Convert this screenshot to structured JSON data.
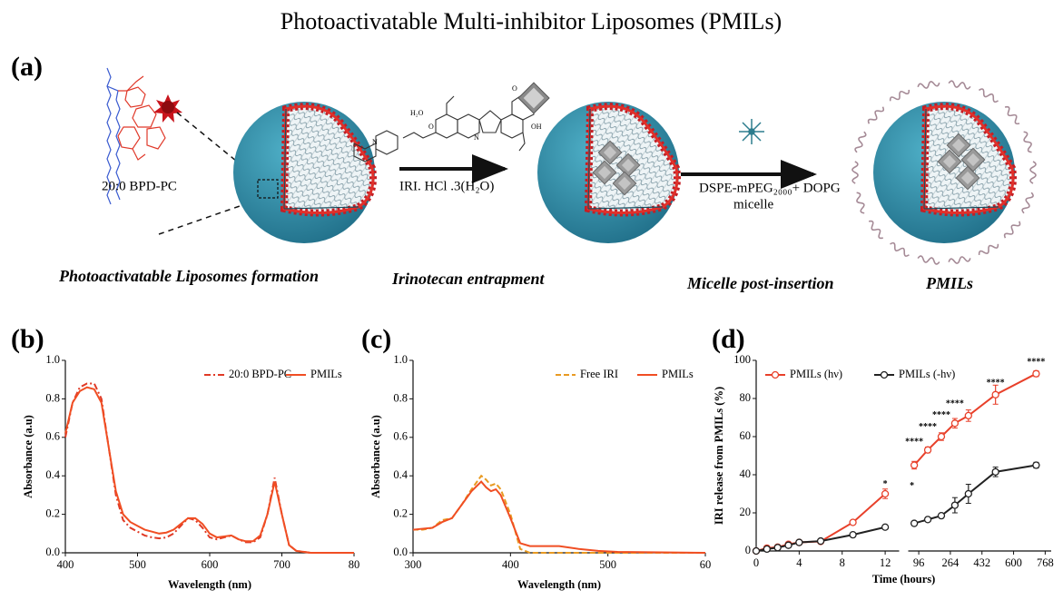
{
  "title": "Photoactivatable Multi-inhibitor Liposomes (PMILs)",
  "diagram": {
    "panel_label": "(a)",
    "lipid_label": "20:0 BPD-PC",
    "molecule_labels": [
      "H₂O",
      "O",
      "O",
      "OH",
      "N",
      "N"
    ],
    "step1_label": "IRI. HCl .3(H₂O)",
    "step2_label": [
      "DSPE-mPEG₂₀₀₀+ DOPG",
      "micelle"
    ],
    "stages": [
      "Photoactivatable Liposomes formation",
      "Irinotecan entrapment",
      "Micelle post-insertion",
      "PMILs"
    ]
  },
  "chart_data": [
    {
      "type": "line",
      "panel_label": "(b)",
      "x_label": "Wavelength (nm)",
      "y_label": "Absorbance (a.u)",
      "x": [
        400,
        410,
        420,
        430,
        440,
        450,
        460,
        470,
        480,
        490,
        500,
        510,
        520,
        530,
        540,
        550,
        560,
        570,
        580,
        590,
        600,
        610,
        620,
        630,
        640,
        650,
        660,
        670,
        680,
        690,
        700,
        710,
        720,
        740,
        800
      ],
      "series": [
        {
          "name": "20:0 BPD-PC",
          "color": "#e03a26",
          "style": "dashdot",
          "values": [
            0.6,
            0.78,
            0.86,
            0.88,
            0.88,
            0.8,
            0.55,
            0.3,
            0.17,
            0.13,
            0.11,
            0.09,
            0.08,
            0.075,
            0.08,
            0.1,
            0.14,
            0.18,
            0.17,
            0.13,
            0.08,
            0.07,
            0.08,
            0.09,
            0.07,
            0.055,
            0.055,
            0.08,
            0.2,
            0.39,
            0.2,
            0.04,
            0.01,
            0,
            0
          ]
        },
        {
          "name": "PMILs",
          "color": "#f04e23",
          "style": "solid",
          "values": [
            0.62,
            0.78,
            0.84,
            0.86,
            0.85,
            0.78,
            0.55,
            0.32,
            0.2,
            0.16,
            0.14,
            0.12,
            0.11,
            0.1,
            0.105,
            0.12,
            0.15,
            0.18,
            0.18,
            0.15,
            0.1,
            0.08,
            0.085,
            0.09,
            0.07,
            0.06,
            0.06,
            0.09,
            0.2,
            0.37,
            0.2,
            0.04,
            0.01,
            0,
            0
          ]
        }
      ],
      "xlim": [
        400,
        800
      ],
      "xticks": [
        400,
        500,
        600,
        700,
        {
          "value": 800,
          "label": "80"
        }
      ],
      "ylim": [
        0,
        1
      ],
      "yticks": [
        {
          "value": 0,
          "label": "0.0"
        },
        0.2,
        0.4,
        0.6,
        0.8,
        {
          "value": 1,
          "label": "1.0"
        }
      ],
      "legend": "upper right"
    },
    {
      "type": "line",
      "panel_label": "(c)",
      "x_label": "Wavelength (nm)",
      "y_label": "Absorbance (a.u)",
      "x": [
        300,
        310,
        320,
        330,
        340,
        350,
        360,
        370,
        375,
        380,
        385,
        390,
        400,
        410,
        420,
        450,
        470,
        490,
        510,
        600
      ],
      "series": [
        {
          "name": "Free IRI",
          "color": "#e89a22",
          "style": "dashed",
          "values": [
            0.12,
            0.12,
            0.13,
            0.17,
            0.18,
            0.25,
            0.33,
            0.4,
            0.38,
            0.35,
            0.36,
            0.33,
            0.2,
            0.02,
            0,
            0,
            0,
            0,
            0,
            0
          ]
        },
        {
          "name": "PMILs",
          "color": "#f04e23",
          "style": "solid",
          "values": [
            0.12,
            0.125,
            0.13,
            0.16,
            0.18,
            0.25,
            0.32,
            0.37,
            0.34,
            0.32,
            0.33,
            0.3,
            0.18,
            0.05,
            0.035,
            0.035,
            0.02,
            0.01,
            0.005,
            0
          ]
        }
      ],
      "xlim": [
        300,
        600
      ],
      "xticks": [
        300,
        400,
        500,
        {
          "value": 600,
          "label": "60"
        }
      ],
      "ylim": [
        0,
        1
      ],
      "yticks": [
        {
          "value": 0,
          "label": "0.0"
        },
        0.2,
        0.4,
        0.6,
        0.8,
        {
          "value": 1,
          "label": "1.0"
        }
      ],
      "legend": "upper right"
    },
    {
      "type": "line",
      "panel_label": "(d)",
      "x_label": "Time (hours)",
      "y_label": "IRI release from PMILs (%)",
      "x": [
        0,
        1,
        2,
        3,
        4,
        6,
        9,
        12,
        72,
        144,
        216,
        288,
        360,
        504,
        720
      ],
      "series": [
        {
          "name": "PMILs (hν)",
          "color": "#e8402a",
          "style": "solid",
          "values": [
            0,
            1.5,
            2,
            3.5,
            4.5,
            5,
            15,
            30,
            45,
            53,
            60,
            67,
            71,
            82,
            93
          ],
          "errors": [
            0.3,
            0.3,
            0.3,
            0.3,
            0.4,
            0.5,
            0.8,
            2.5,
            2,
            1.5,
            2,
            2.5,
            3,
            5,
            1.5
          ]
        },
        {
          "name": "PMILs (-hν)",
          "color": "#222222",
          "style": "solid",
          "values": [
            0,
            1,
            1.8,
            3,
            4.5,
            5.2,
            8.5,
            12.5,
            14.5,
            16.5,
            18.5,
            24,
            30,
            41.5,
            45
          ],
          "errors": [
            0.3,
            0.3,
            0.3,
            0.3,
            0.4,
            0.5,
            0.6,
            1,
            1,
            1,
            1,
            4,
            5,
            2.5,
            1.5
          ]
        }
      ],
      "x_segments": [
        {
          "xlim": [
            0,
            13.3
          ],
          "xticks": [
            0,
            4,
            8,
            12
          ]
        },
        {
          "xlim": [
            40,
            800
          ],
          "xticks": [
            96,
            264,
            432,
            600,
            768
          ]
        }
      ],
      "ylim": [
        0,
        100
      ],
      "yticks": [
        0,
        20,
        40,
        60,
        80,
        100
      ],
      "annotations": [
        {
          "text": "*",
          "x": 12,
          "y": 35
        },
        {
          "text": "*",
          "x": 60,
          "y": 34
        },
        {
          "text": "****",
          "x": 72,
          "y": 57
        },
        {
          "text": "****",
          "x": 144,
          "y": 65
        },
        {
          "text": "****",
          "x": 216,
          "y": 71
        },
        {
          "text": "****",
          "x": 288,
          "y": 77
        },
        {
          "text": "****",
          "x": 504,
          "y": 88
        },
        {
          "text": "****",
          "x": 720,
          "y": 99
        }
      ],
      "legend": "upper left"
    }
  ]
}
